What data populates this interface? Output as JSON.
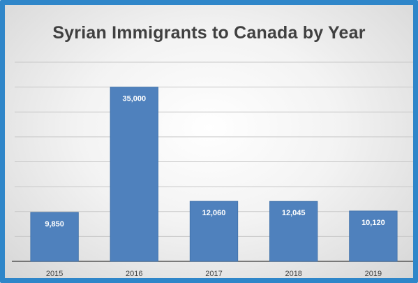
{
  "colors": {
    "frame": "#2f86c9",
    "bar": "#4f81bd",
    "bar_edge": "#3d6fa8",
    "gridline": "#c8c8c8",
    "axis": "#555555",
    "text": "#404040"
  },
  "chart_data": {
    "type": "bar",
    "title": "Syrian Immigrants to Canada by Year",
    "categories": [
      "2015",
      "2016",
      "2017",
      "2018",
      "2019"
    ],
    "values": [
      9850,
      35000,
      12060,
      12045,
      10120
    ],
    "value_labels": [
      "9,850",
      "35,000",
      "12,060",
      "12,045",
      "10,120"
    ],
    "xlabel": "",
    "ylabel": "",
    "ylim": [
      0,
      40000
    ],
    "grid": true,
    "legend": "none"
  }
}
